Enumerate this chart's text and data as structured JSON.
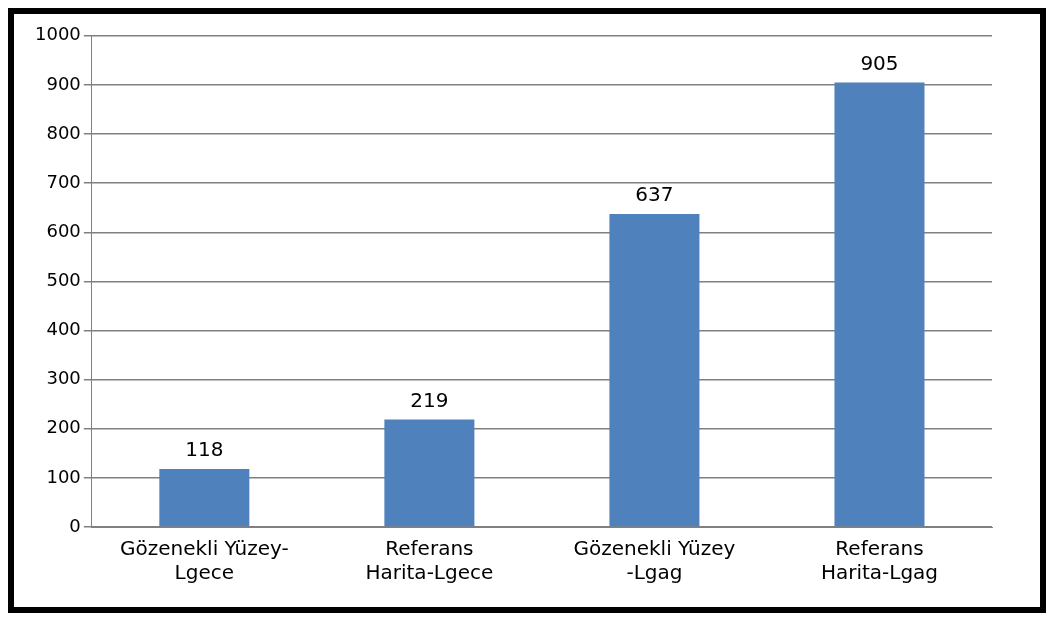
{
  "chart_data": {
    "type": "bar",
    "categories": [
      "Gözenekli Yüzey- Lgece",
      "Referans Harita-Lgece",
      "Gözenekli Yüzey -Lgag",
      "Referans Harita-Lgag"
    ],
    "values": [
      118,
      219,
      637,
      905
    ],
    "color": "#4f81bd",
    "ylim": [
      0,
      1000
    ],
    "yticks": [
      0,
      100,
      200,
      300,
      400,
      500,
      600,
      700,
      800,
      900,
      1000
    ],
    "grid": "y",
    "data_labels": true
  }
}
